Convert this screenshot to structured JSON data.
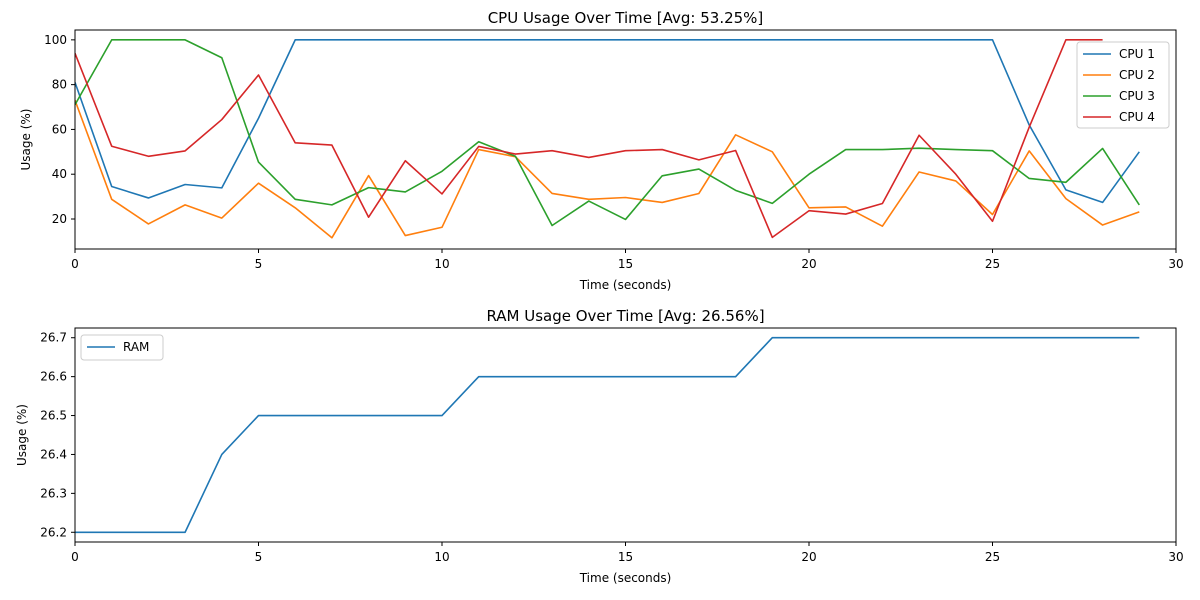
{
  "chart_data": [
    {
      "type": "line",
      "title": "CPU Usage Over Time [Avg: 53.25%]",
      "xlabel": "Time (seconds)",
      "ylabel": "Usage (%)",
      "xlim": [
        0,
        30
      ],
      "ylim": [
        6.6,
        104.4
      ],
      "xticks": [
        0,
        5,
        10,
        15,
        20,
        25,
        30
      ],
      "xtick_labels": [
        "0",
        "5",
        "10",
        "15",
        "20",
        "25",
        "30"
      ],
      "yticks": [
        20,
        40,
        60,
        80,
        100
      ],
      "ytick_labels": [
        "20",
        "40",
        "60",
        "80",
        "100"
      ],
      "grid": false,
      "legend_position": "top-right",
      "x": [
        0,
        1,
        2,
        3,
        4,
        5,
        6,
        7,
        8,
        9,
        10,
        11,
        12,
        13,
        14,
        15,
        16,
        17,
        18,
        19,
        20,
        21,
        22,
        23,
        24,
        25,
        26,
        27,
        28,
        29
      ],
      "series": [
        {
          "name": "CPU 1",
          "color": "#1f77b4",
          "values": [
            81,
            34.5,
            29.4,
            35.4,
            33.9,
            65,
            100,
            100,
            100,
            100,
            100,
            100,
            100,
            100,
            100,
            100,
            100,
            100,
            100,
            100,
            100,
            100,
            100,
            100,
            100,
            100,
            62,
            33,
            27.4,
            50
          ]
        },
        {
          "name": "CPU 2",
          "color": "#ff7f0e",
          "values": [
            73,
            28.8,
            17.8,
            26.3,
            20.4,
            36,
            25,
            11.6,
            39.4,
            12.6,
            16.3,
            51,
            47.8,
            31.4,
            28.8,
            29.6,
            27.4,
            31.4,
            57.6,
            50,
            25,
            25.4,
            16.8,
            41,
            37,
            22,
            50.4,
            29.1,
            17.3,
            23.2
          ]
        },
        {
          "name": "CPU 3",
          "color": "#2ca02c",
          "values": [
            71,
            100,
            100,
            100,
            92,
            45.4,
            28.8,
            26.3,
            34,
            32.1,
            41.3,
            54.5,
            48,
            17.1,
            28,
            19.8,
            39.3,
            42.3,
            32.8,
            27,
            40,
            51,
            51,
            51.6,
            51,
            50.5,
            38.1,
            36.4,
            51.5,
            26.3
          ]
        },
        {
          "name": "CPU 4",
          "color": "#d62728",
          "values": [
            94,
            52.5,
            48,
            50.4,
            64.4,
            84.3,
            54,
            53,
            20.8,
            46,
            31.2,
            52.4,
            49,
            50.5,
            47.5,
            50.5,
            51,
            46.4,
            50.6,
            11.8,
            23.7,
            22.2,
            26.9,
            57.4,
            40,
            19,
            61,
            100,
            100,
            null
          ]
        }
      ]
    },
    {
      "type": "line",
      "title": "RAM Usage Over Time [Avg: 26.56%]",
      "xlabel": "Time (seconds)",
      "ylabel": "Usage (%)",
      "xlim": [
        0,
        30
      ],
      "ylim": [
        26.175,
        26.725
      ],
      "xticks": [
        0,
        5,
        10,
        15,
        20,
        25,
        30
      ],
      "xtick_labels": [
        "0",
        "5",
        "10",
        "15",
        "20",
        "25",
        "30"
      ],
      "yticks": [
        26.2,
        26.3,
        26.4,
        26.5,
        26.6,
        26.7
      ],
      "ytick_labels": [
        "26.2",
        "26.3",
        "26.4",
        "26.5",
        "26.6",
        "26.7"
      ],
      "grid": false,
      "legend_position": "top-left",
      "x": [
        0,
        1,
        2,
        3,
        4,
        5,
        6,
        7,
        8,
        9,
        10,
        11,
        12,
        13,
        14,
        15,
        16,
        17,
        18,
        19,
        20,
        21,
        22,
        23,
        24,
        25,
        26,
        27,
        28,
        29
      ],
      "series": [
        {
          "name": "RAM",
          "color": "#1f77b4",
          "values": [
            26.2,
            26.2,
            26.2,
            26.2,
            26.4,
            26.5,
            26.5,
            26.5,
            26.5,
            26.5,
            26.5,
            26.6,
            26.6,
            26.6,
            26.6,
            26.6,
            26.6,
            26.6,
            26.6,
            26.7,
            26.7,
            26.7,
            26.7,
            26.7,
            26.7,
            26.7,
            26.7,
            26.7,
            26.7,
            26.7
          ]
        }
      ]
    }
  ]
}
